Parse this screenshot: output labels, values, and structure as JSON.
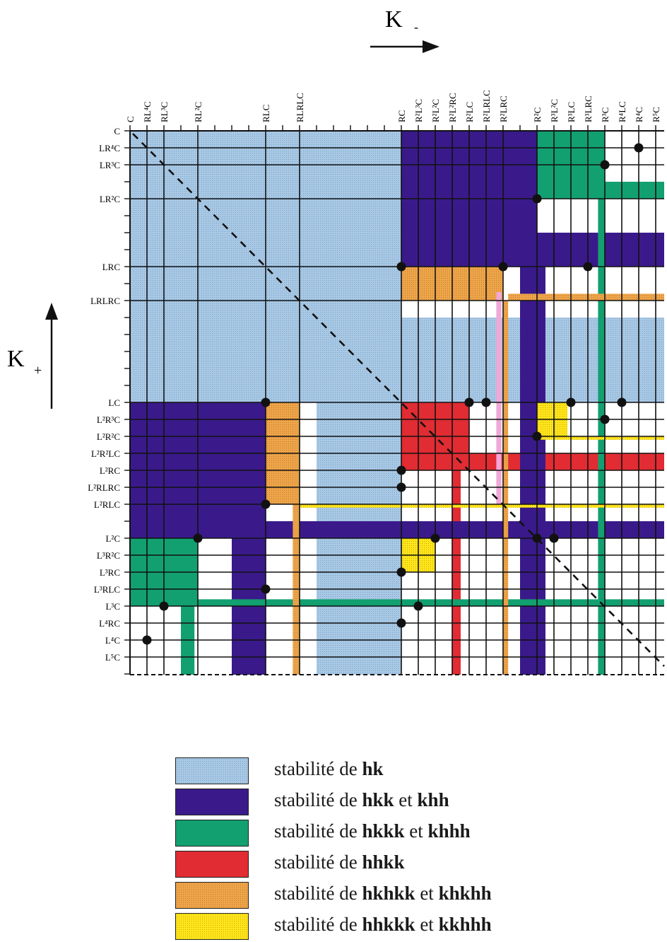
{
  "axes": {
    "k_minus": "K",
    "k_minus_sub": "-",
    "k_plus": "K",
    "k_plus_sub": "+"
  },
  "column_labels": [
    {
      "t": "C"
    },
    {
      "t": "RL⁴C"
    },
    {
      "t": "RL³C"
    },
    {
      "t": "RL²C"
    },
    {
      "t": "RLC"
    },
    {
      "t": "RLRLC"
    },
    {
      "t": "RC"
    },
    {
      "t": "R²L³C"
    },
    {
      "t": "R²L²C"
    },
    {
      "t": "R²L²RC"
    },
    {
      "t": "R²LC"
    },
    {
      "t": "R²LRLC"
    },
    {
      "t": "R²LRC"
    },
    {
      "t": "R²C"
    },
    {
      "t": "R³L²C"
    },
    {
      "t": "R³LC"
    },
    {
      "t": "R³LRC"
    },
    {
      "t": "R³C"
    },
    {
      "t": "R⁴LC"
    },
    {
      "t": "R⁴C"
    },
    {
      "t": "R⁵C"
    }
  ],
  "row_labels": [
    {
      "t": "C"
    },
    {
      "t": "LR⁴C"
    },
    {
      "t": "LR³C"
    },
    {
      "t": "LR²C"
    },
    {
      "t": "LRC"
    },
    {
      "t": "LRLRC"
    },
    {
      "t": "LC"
    },
    {
      "t": "L²R³C"
    },
    {
      "t": "L²R²C"
    },
    {
      "t": "L²R²LC"
    },
    {
      "t": "L²RC"
    },
    {
      "t": "L²RLRC"
    },
    {
      "t": "L²RLC"
    },
    {
      "t": "L²C"
    },
    {
      "t": "L³R²C"
    },
    {
      "t": "L³RC"
    },
    {
      "t": "L³RLC"
    },
    {
      "t": "L³C"
    },
    {
      "t": "L⁴RC"
    },
    {
      "t": "L⁴C"
    },
    {
      "t": "L⁵C"
    }
  ],
  "colors": {
    "hk": "#a8c8e4",
    "hkk": "#3a1a8a",
    "hkkk": "#12a070",
    "hhkk": "#e02c32",
    "hkhkk": "#eda54a",
    "hhkkk": "#ffe51c",
    "pink": "#f0a8d8"
  },
  "legend": [
    {
      "key": "hk",
      "prefix": "stabilité de ",
      "a": "hk",
      "mid": "",
      "b": ""
    },
    {
      "key": "hkk",
      "prefix": "stabilité de ",
      "a": "hkk",
      "mid": " et ",
      "b": "khh"
    },
    {
      "key": "hkkk",
      "prefix": "stabilité de ",
      "a": "hkkk",
      "mid": " et ",
      "b": "khhh"
    },
    {
      "key": "hhkk",
      "prefix": "stabilité de ",
      "a": "hhkk",
      "mid": "",
      "b": ""
    },
    {
      "key": "hkhkk",
      "prefix": "stabilité de ",
      "a": "hkhkk",
      "mid": " et  ",
      "b": "khkhh"
    },
    {
      "key": "hhkkk",
      "prefix": "stabilité de ",
      "a": "hhkkk",
      "mid": " et ",
      "b": "kkhhh"
    }
  ]
}
